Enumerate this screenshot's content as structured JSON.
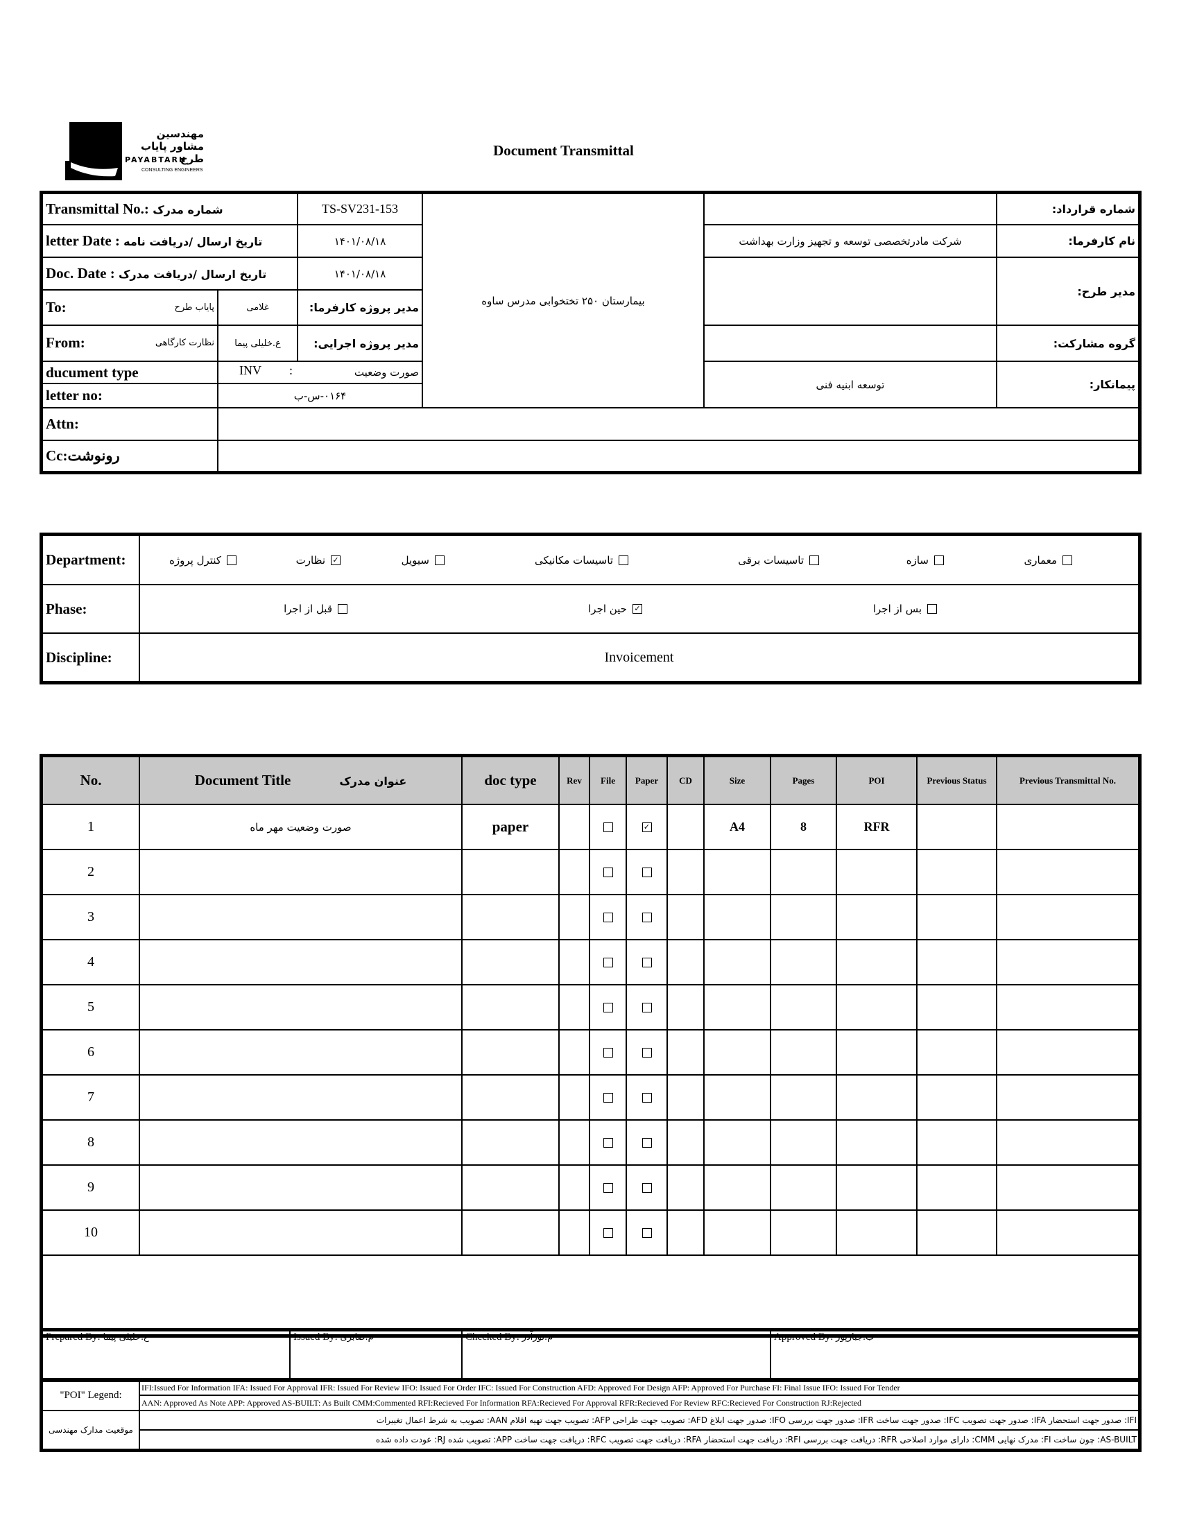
{
  "logo": {
    "fa": "مهندسین مشاور پایاب طرح",
    "en": "PAYABTARH",
    "sub": "CONSULTING ENGINEERS"
  },
  "title": "Document Transmittal",
  "header": {
    "transmittal_label": "Transmittal No.:",
    "transmittal_fa": "شماره مدرک",
    "transmittal_value": "TS-SV231-153",
    "letter_date_label": "letter Date :",
    "letter_date_fa": "تاریخ ارسال /دریافت نامه",
    "letter_date_value": "۱۴۰۱/۰۸/۱۸",
    "doc_date_label": "Doc. Date :",
    "doc_date_fa": "تاریخ ارسال /دریافت مدرک",
    "doc_date_value": "۱۴۰۱/۰۸/۱۸",
    "to_label": "To:",
    "to_org": "پایاب طرح",
    "to_name": "غلامی",
    "to_role": "مدیر پروژه کارفرما:",
    "from_label": "From:",
    "from_org": "نظارت کارگاهی",
    "from_name": "ع.خلیلی پیما",
    "from_role": "مدیر پروژه اجرایی:",
    "doctype_label": "ducument type",
    "doctype_code": "INV",
    "doctype_sep": ":",
    "doctype_fa": "صورت وضعیت",
    "letterno_label": "letter no:",
    "letterno_value": "۰۱۶۴-س-ب",
    "project": "بیمارستان ۲۵۰ تختخوابی مدرس ساوه",
    "contract_label": "شماره قرارداد:",
    "contract_value": "",
    "client_label": "نام کارفرما:",
    "client_value": "شرکت مادرتخصصی توسعه و تجهیز وزارت بهداشت",
    "pm_label": "مدیر طرح:",
    "pm_value": "",
    "group_label": "گروه مشارکت:",
    "group_value": "",
    "contractor_label": "پیمانکار:",
    "contractor_value": "توسعه ابنیه فنی",
    "attn_label": "Attn:",
    "attn_value": "",
    "cc_label": "Cc:رونوشت",
    "cc_value": ""
  },
  "department": {
    "label": "Department:",
    "options": [
      {
        "label": "معماری",
        "checked": false
      },
      {
        "label": "سازه",
        "checked": false
      },
      {
        "label": "تاسیسات برقی",
        "checked": false
      },
      {
        "label": "تاسیسات مکانیکی",
        "checked": false
      },
      {
        "label": "سیویل",
        "checked": false
      },
      {
        "label": "نظارت",
        "checked": true
      },
      {
        "label": "کنترل پروژه",
        "checked": false
      }
    ]
  },
  "phase": {
    "label": "Phase:",
    "options": [
      {
        "label": "بس از اجرا",
        "checked": false
      },
      {
        "label": "حین اجرا",
        "checked": true
      },
      {
        "label": "قبل از اجرا",
        "checked": false
      }
    ]
  },
  "discipline": {
    "label": "Discipline:",
    "value": "Invoicement"
  },
  "table": {
    "headers": {
      "no": "No.",
      "title_en": "Document Title",
      "title_fa": "عنوان مدرک",
      "doctype": "doc type",
      "rev": "Rev",
      "file": "File",
      "paper": "Paper",
      "cd": "CD",
      "size": "Size",
      "pages": "Pages",
      "poi": "POI",
      "prev_status": "Previous Status",
      "prev_no": "Previous Transmittal No."
    },
    "rows": [
      {
        "no": "1",
        "title": "صورت وضعیت مهر ماه",
        "doctype": "paper",
        "rev": "",
        "file": false,
        "paper": true,
        "cd": "",
        "size": "A4",
        "pages": "8",
        "poi": "RFR",
        "prev_status": "",
        "prev_no": ""
      },
      {
        "no": "2",
        "file": false,
        "paper": false
      },
      {
        "no": "3",
        "file": false,
        "paper": false
      },
      {
        "no": "4",
        "file": false,
        "paper": false
      },
      {
        "no": "5",
        "file": false,
        "paper": false
      },
      {
        "no": "6",
        "file": false,
        "paper": false
      },
      {
        "no": "7",
        "file": false,
        "paper": false
      },
      {
        "no": "8",
        "file": false,
        "paper": false
      },
      {
        "no": "9",
        "file": false,
        "paper": false
      },
      {
        "no": "10",
        "file": false,
        "paper": false
      }
    ]
  },
  "signatures": {
    "prepared_label": "Prepared By:",
    "prepared": "ع.خلیلی پیما",
    "issued_label": "Issued By:",
    "issued": "م.صابری",
    "checked_label": "Checked By:",
    "checked": "م.نورآذر",
    "approved_label": "Approved By:",
    "approved": "ب.جبارپور"
  },
  "legend": {
    "poi_label": "\"POI\" Legend:",
    "poi_line1": "IFI:Issued For Information  IFA: Issued For Approval  IFR: Issued For Review   IFO: Issued For Order  IFC: Issued For Construction  AFD: Approved For Design  AFP: Approved For Purchase  FI: Final Issue  IFO: Issued For Tender",
    "poi_line2": "AAN: Approved As Note  APP: Approved  AS-BUILT: As Built  CMM:Commented  RFI:Recieved For Information  RFA:Recieved For Approval  RFR:Recieved For Review  RFC:Recieved For Construction  RJ:Rejected",
    "status_label": "موقعیت مدارک مهندسی",
    "status_line1": "IFI: صدور جهت استحضار    IFA: صدور جهت تصویب    IFC: صدور جهت ساخت    IFR: صدور جهت بررسی    IFO: صدور جهت ابلاغ    AFD: تصویب جهت طراحی    AFP: تصویب جهت تهیه اقلام    AAN: تصویب به شرط اعمال تغییرات",
    "status_line2": "AS-BUILT: چون ساخت    FI: مدرک نهایی    CMM: دارای موارد اصلاحی    RFR: دریافت جهت بررسی    RFI: دریافت جهت استحضار    RFA: دریافت جهت تصویب    RFC: دریافت جهت ساخت    APP: تصویب شده    RJ: عودت داده شده"
  }
}
